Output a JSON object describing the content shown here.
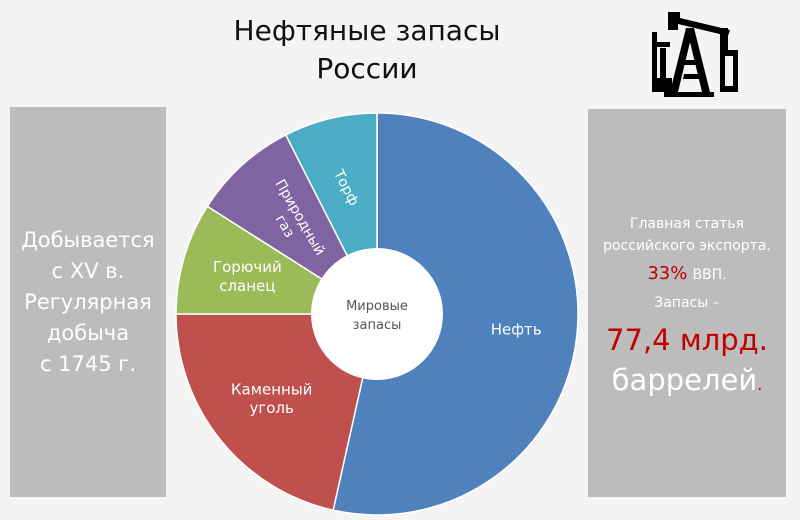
{
  "title_line1": "Нефтяные запасы",
  "title_line2": "России",
  "left_panel": {
    "lines": [
      "Добывается",
      "с XV в.",
      "Регулярная",
      "добыча",
      "с 1745 г."
    ]
  },
  "right_panel": {
    "line1": "Главная статья",
    "line2": "российского экспорта.",
    "percent": "33%",
    "gdp_label": "ВВП.",
    "reserves_label": "Запасы –",
    "reserves_value": "77,4 млрд.",
    "reserves_unit": "баррелей",
    "reserves_dot": "."
  },
  "colors": {
    "oil": "#4f81bd",
    "coal": "#c0504d",
    "shale": "#9bbb59",
    "gas": "#8064a2",
    "peat": "#4bacc6",
    "accent_red": "#c00000"
  },
  "chart_data": {
    "type": "pie",
    "donut": true,
    "center_label_line1": "Мировые",
    "center_label_line2": "запасы",
    "slices": [
      {
        "label": "Нефть",
        "value": 53.5
      },
      {
        "label": "Каменный уголь",
        "value": 21.5
      },
      {
        "label": "Горючий сланец",
        "value": 9
      },
      {
        "label": "Природный газ",
        "value": 8.5
      },
      {
        "label": "Торф",
        "value": 7.5
      }
    ],
    "start_angle": "top",
    "direction": "clockwise"
  },
  "icons": {
    "logo": "oil-pumpjack-icon"
  }
}
